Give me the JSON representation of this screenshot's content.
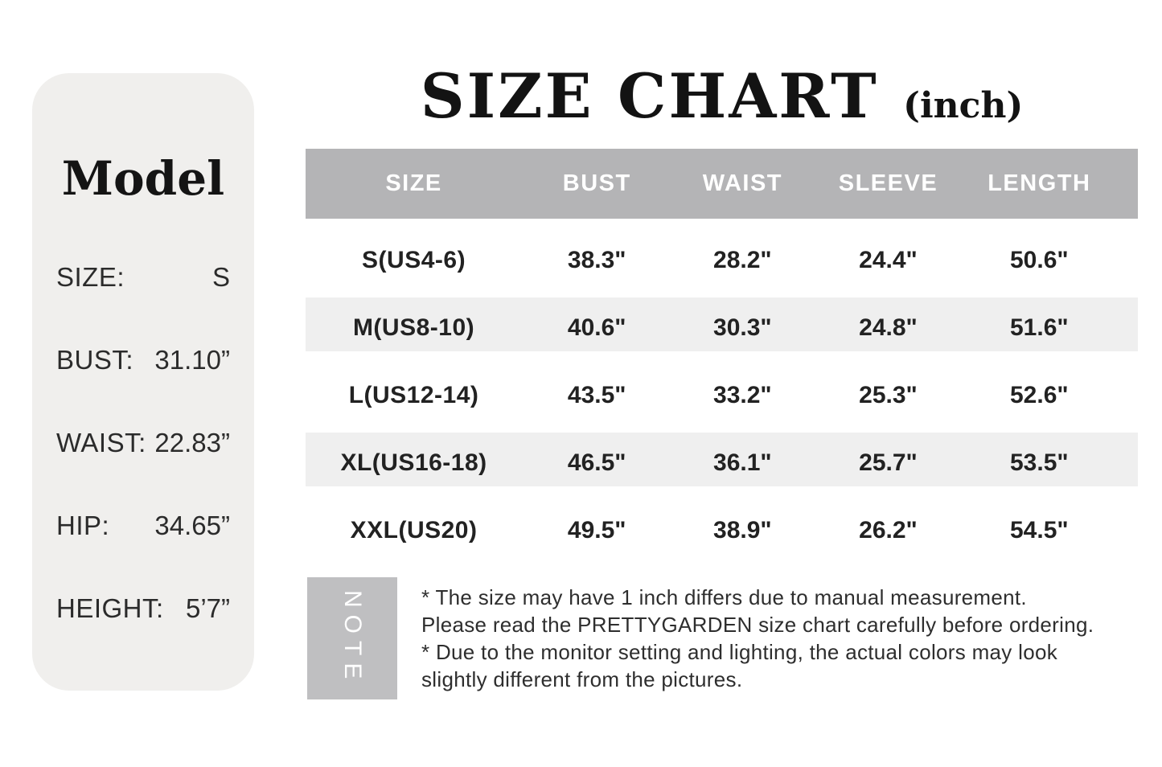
{
  "model_card": {
    "title": "Model",
    "rows": [
      {
        "label": "SIZE:",
        "value": "S"
      },
      {
        "label": "BUST:",
        "value": "31.10”"
      },
      {
        "label": "WAIST:",
        "value": "22.83”"
      },
      {
        "label": "HIP:",
        "value": "34.65”"
      },
      {
        "label": "HEIGHT:",
        "value": "5’7”"
      }
    ]
  },
  "size_chart": {
    "title": "SIZE CHART",
    "unit_label": "(inch)",
    "columns": [
      "SIZE",
      "BUST",
      "WAIST",
      "SLEEVE",
      "LENGTH"
    ],
    "rows": [
      {
        "cells": [
          "S(US4-6)",
          "38.3\"",
          "28.2\"",
          "24.4\"",
          "50.6\""
        ]
      },
      {
        "cells": [
          "M(US8-10)",
          "40.6\"",
          "30.3\"",
          "24.8\"",
          "51.6\""
        ]
      },
      {
        "cells": [
          "L(US12-14)",
          "43.5\"",
          "33.2\"",
          "25.3\"",
          "52.6\""
        ]
      },
      {
        "cells": [
          "XL(US16-18)",
          "46.5\"",
          "36.1\"",
          "25.7\"",
          "53.5\""
        ]
      },
      {
        "cells": [
          "XXL(US20)",
          "49.5\"",
          "38.9\"",
          "26.2\"",
          "54.5\""
        ]
      }
    ]
  },
  "note": {
    "box_label": "NOTE",
    "lines": [
      "* The size may have 1 inch differs due to manual measurement.",
      "Please read the PRETTYGARDEN size chart carefully before ordering.",
      "* Due to the monitor setting and lighting, the actual colors may look",
      "slightly different from the pictures."
    ]
  },
  "colors": {
    "page_background": "#ffffff",
    "model_card_background": "#f0efed",
    "table_header_background": "#b4b4b6",
    "table_stripe_background": "#efefef",
    "note_box_background": "#bfbfc1",
    "text_primary": "#1c1c1c"
  }
}
